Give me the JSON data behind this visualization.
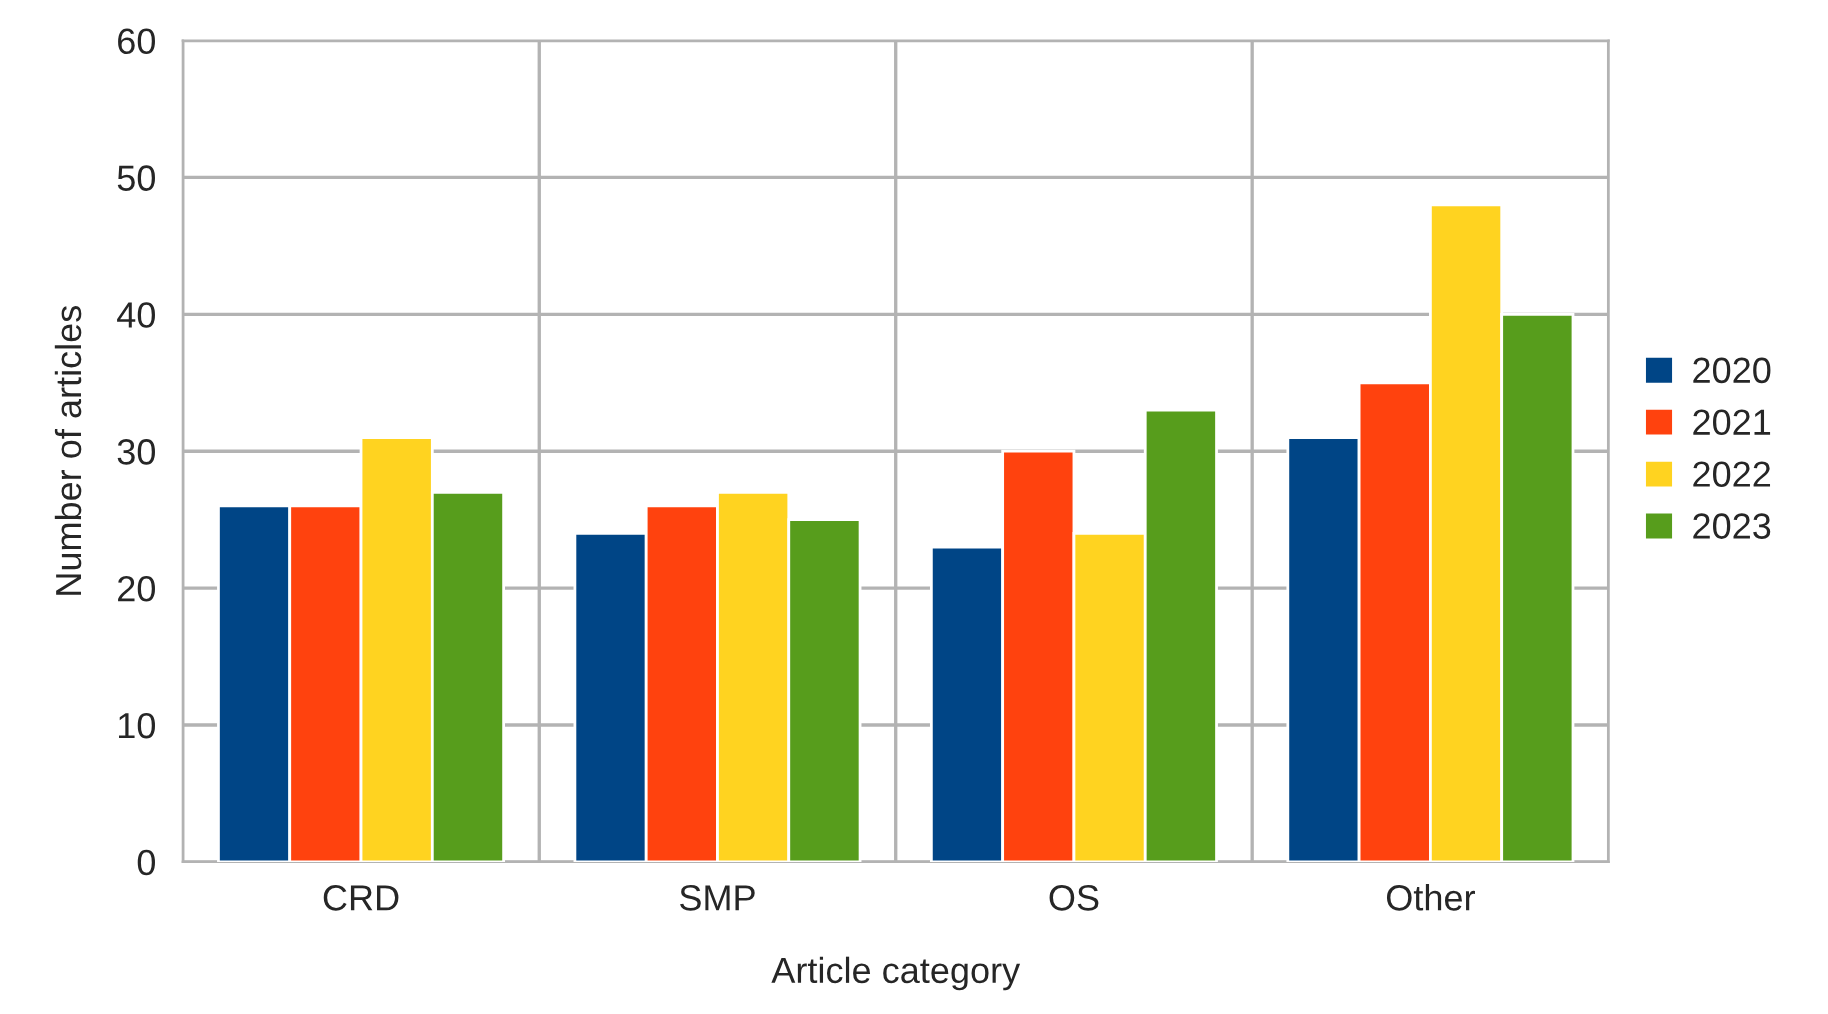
{
  "chart_data": {
    "type": "bar",
    "xlabel": "Article category",
    "ylabel": "Number of articles",
    "categories": [
      "CRD",
      "SMP",
      "OS",
      "Other"
    ],
    "series": [
      {
        "name": "2020",
        "color": "#004586",
        "values": [
          26,
          24,
          23,
          31
        ]
      },
      {
        "name": "2021",
        "color": "#ff420e",
        "values": [
          26,
          26,
          30,
          35
        ]
      },
      {
        "name": "2022",
        "color": "#ffd320",
        "values": [
          31,
          27,
          24,
          48
        ]
      },
      {
        "name": "2023",
        "color": "#579d1c",
        "values": [
          27,
          25,
          33,
          40
        ]
      }
    ],
    "ylim": [
      0,
      60
    ],
    "yticks": [
      0,
      10,
      20,
      30,
      40,
      50,
      60
    ],
    "grid": true,
    "legend": "right"
  }
}
